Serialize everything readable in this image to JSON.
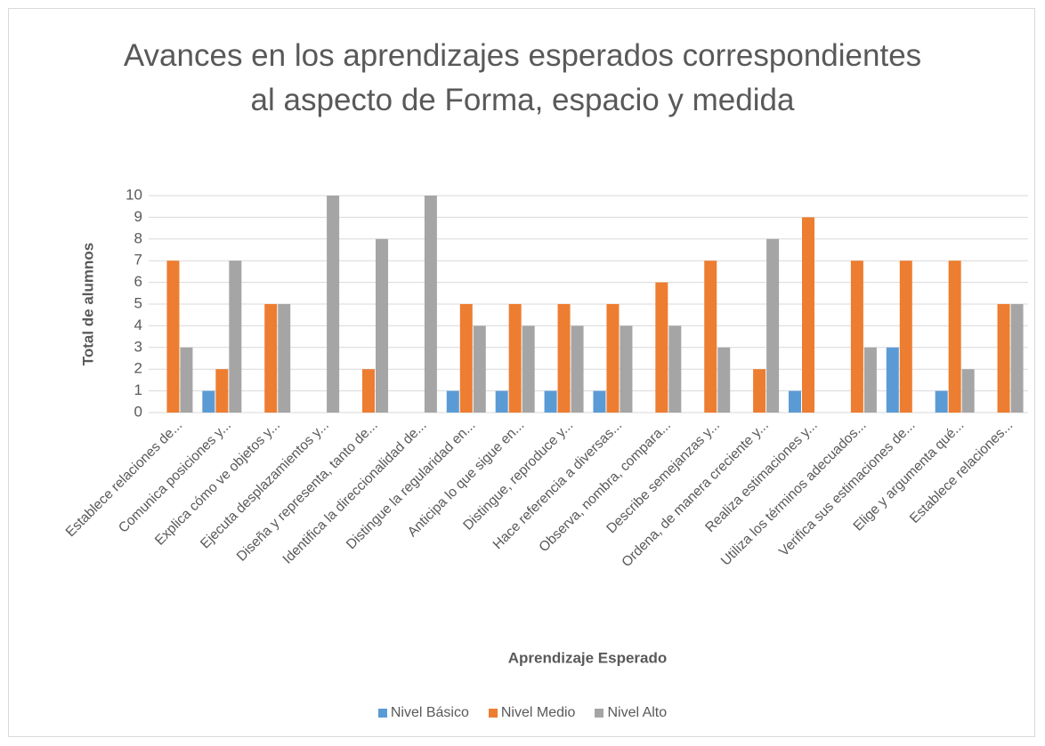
{
  "chart_data": {
    "type": "bar",
    "title": "Avances en los aprendizajes esperados correspondientes al aspecto de Forma, espacio y medida",
    "x_label": "Aprendizaje Esperado",
    "y_label": "Total de alumnos",
    "categories": [
      "Establece relaciones de...",
      "Comunica posiciones y...",
      "Explica cómo ve objetos y...",
      "Ejecuta desplazamientos y...",
      "Diseña y representa, tanto de...",
      "Identifica la direccionalidad de...",
      "Distingue la regularidad en...",
      "Anticipa lo que sigue en...",
      "Distingue, reproduce y...",
      "Hace referencia a diversas...",
      "Observa, nombra, compara...",
      "Describe semejanzas y...",
      "Ordena, de manera creciente y...",
      "Realiza estimaciones y...",
      "Utiliza los términos adecuados...",
      "Verifica sus estimaciones de...",
      "Elige y argumenta qué...",
      "Establece relaciones..."
    ],
    "series": [
      {
        "name": "Nivel Básico",
        "color": "#5b9bd5",
        "values": [
          0,
          1,
          0,
          0,
          0,
          0,
          1,
          1,
          1,
          1,
          0,
          0,
          0,
          1,
          0,
          3,
          1,
          0
        ]
      },
      {
        "name": "Nivel Medio",
        "color": "#ed7d31",
        "values": [
          7,
          2,
          5,
          0,
          2,
          0,
          5,
          5,
          5,
          5,
          6,
          7,
          2,
          9,
          7,
          7,
          7,
          5
        ]
      },
      {
        "name": "Nivel Alto",
        "color": "#a5a5a5",
        "values": [
          3,
          7,
          5,
          10,
          8,
          10,
          4,
          4,
          4,
          4,
          4,
          3,
          8,
          0,
          3,
          0,
          2,
          5
        ]
      }
    ],
    "ylim": [
      0,
      10
    ],
    "yticks": [
      0,
      1,
      2,
      3,
      4,
      5,
      6,
      7,
      8,
      9,
      10
    ],
    "grid": true,
    "legend": "bottom"
  }
}
